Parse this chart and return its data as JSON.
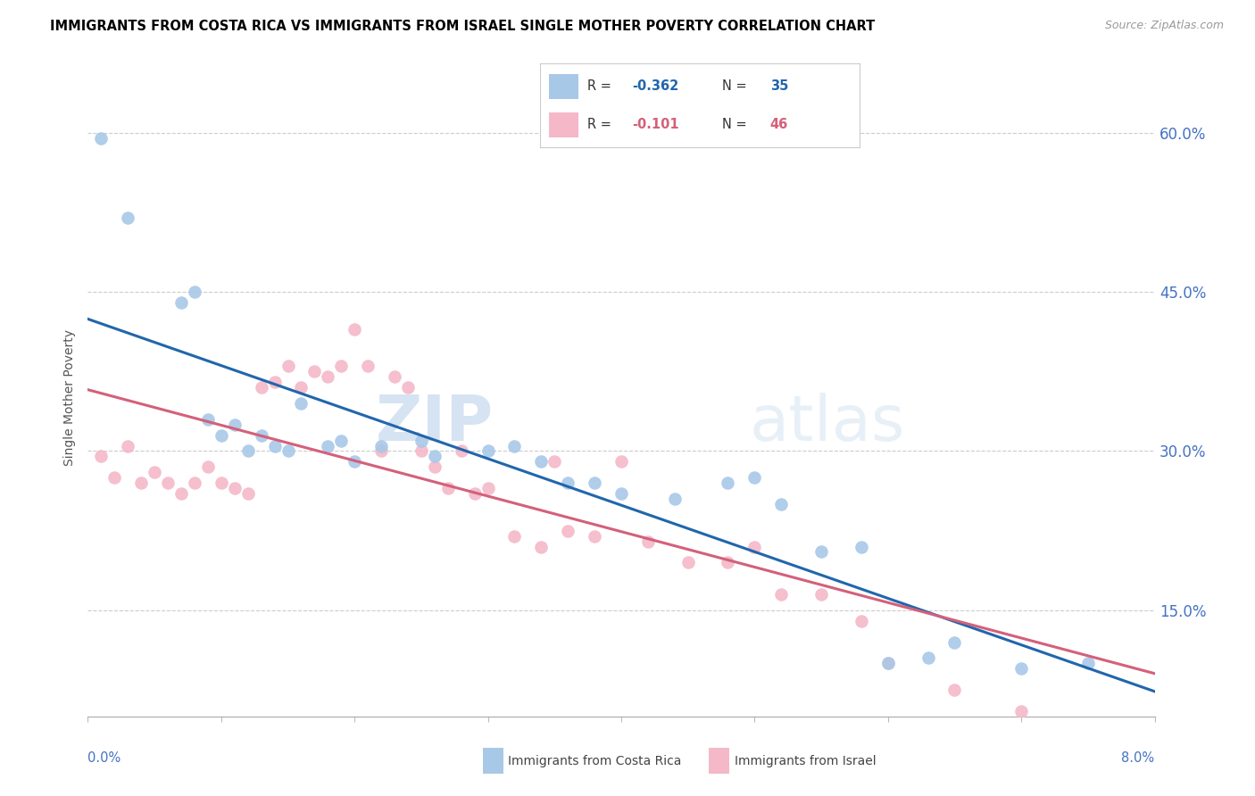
{
  "title": "IMMIGRANTS FROM COSTA RICA VS IMMIGRANTS FROM ISRAEL SINGLE MOTHER POVERTY CORRELATION CHART",
  "source": "Source: ZipAtlas.com",
  "ylabel": "Single Mother Poverty",
  "legend_label1": "Immigrants from Costa Rica",
  "legend_label2": "Immigrants from Israel",
  "yticks": [
    0.15,
    0.3,
    0.45,
    0.6
  ],
  "ytick_labels": [
    "15.0%",
    "30.0%",
    "45.0%",
    "60.0%"
  ],
  "xmin": 0.0,
  "xmax": 0.08,
  "ymin": 0.05,
  "ymax": 0.65,
  "color_blue": "#a8c8e8",
  "color_blue_line": "#2166ac",
  "color_pink": "#f4b8c8",
  "color_pink_line": "#d4607a",
  "color_axis_label": "#4472C4",
  "watermark_zip": "ZIP",
  "watermark_atlas": "atlas",
  "costa_rica_x": [
    0.001,
    0.003,
    0.007,
    0.008,
    0.009,
    0.01,
    0.011,
    0.012,
    0.013,
    0.014,
    0.015,
    0.016,
    0.018,
    0.019,
    0.02,
    0.022,
    0.025,
    0.026,
    0.03,
    0.032,
    0.034,
    0.036,
    0.038,
    0.04,
    0.044,
    0.048,
    0.05,
    0.052,
    0.055,
    0.058,
    0.06,
    0.063,
    0.065,
    0.07,
    0.075
  ],
  "costa_rica_y": [
    0.595,
    0.52,
    0.44,
    0.45,
    0.33,
    0.315,
    0.325,
    0.3,
    0.315,
    0.305,
    0.3,
    0.345,
    0.305,
    0.31,
    0.29,
    0.305,
    0.31,
    0.295,
    0.3,
    0.305,
    0.29,
    0.27,
    0.27,
    0.26,
    0.255,
    0.27,
    0.275,
    0.25,
    0.205,
    0.21,
    0.1,
    0.105,
    0.12,
    0.095,
    0.1
  ],
  "israel_x": [
    0.001,
    0.002,
    0.003,
    0.004,
    0.005,
    0.006,
    0.007,
    0.008,
    0.009,
    0.01,
    0.011,
    0.012,
    0.013,
    0.014,
    0.015,
    0.016,
    0.017,
    0.018,
    0.019,
    0.02,
    0.021,
    0.022,
    0.023,
    0.024,
    0.025,
    0.026,
    0.027,
    0.028,
    0.029,
    0.03,
    0.032,
    0.034,
    0.035,
    0.036,
    0.038,
    0.04,
    0.042,
    0.045,
    0.048,
    0.05,
    0.052,
    0.055,
    0.058,
    0.06,
    0.065,
    0.07
  ],
  "israel_y": [
    0.295,
    0.275,
    0.305,
    0.27,
    0.28,
    0.27,
    0.26,
    0.27,
    0.285,
    0.27,
    0.265,
    0.26,
    0.36,
    0.365,
    0.38,
    0.36,
    0.375,
    0.37,
    0.38,
    0.415,
    0.38,
    0.3,
    0.37,
    0.36,
    0.3,
    0.285,
    0.265,
    0.3,
    0.26,
    0.265,
    0.22,
    0.21,
    0.29,
    0.225,
    0.22,
    0.29,
    0.215,
    0.195,
    0.195,
    0.21,
    0.165,
    0.165,
    0.14,
    0.1,
    0.075,
    0.055
  ]
}
